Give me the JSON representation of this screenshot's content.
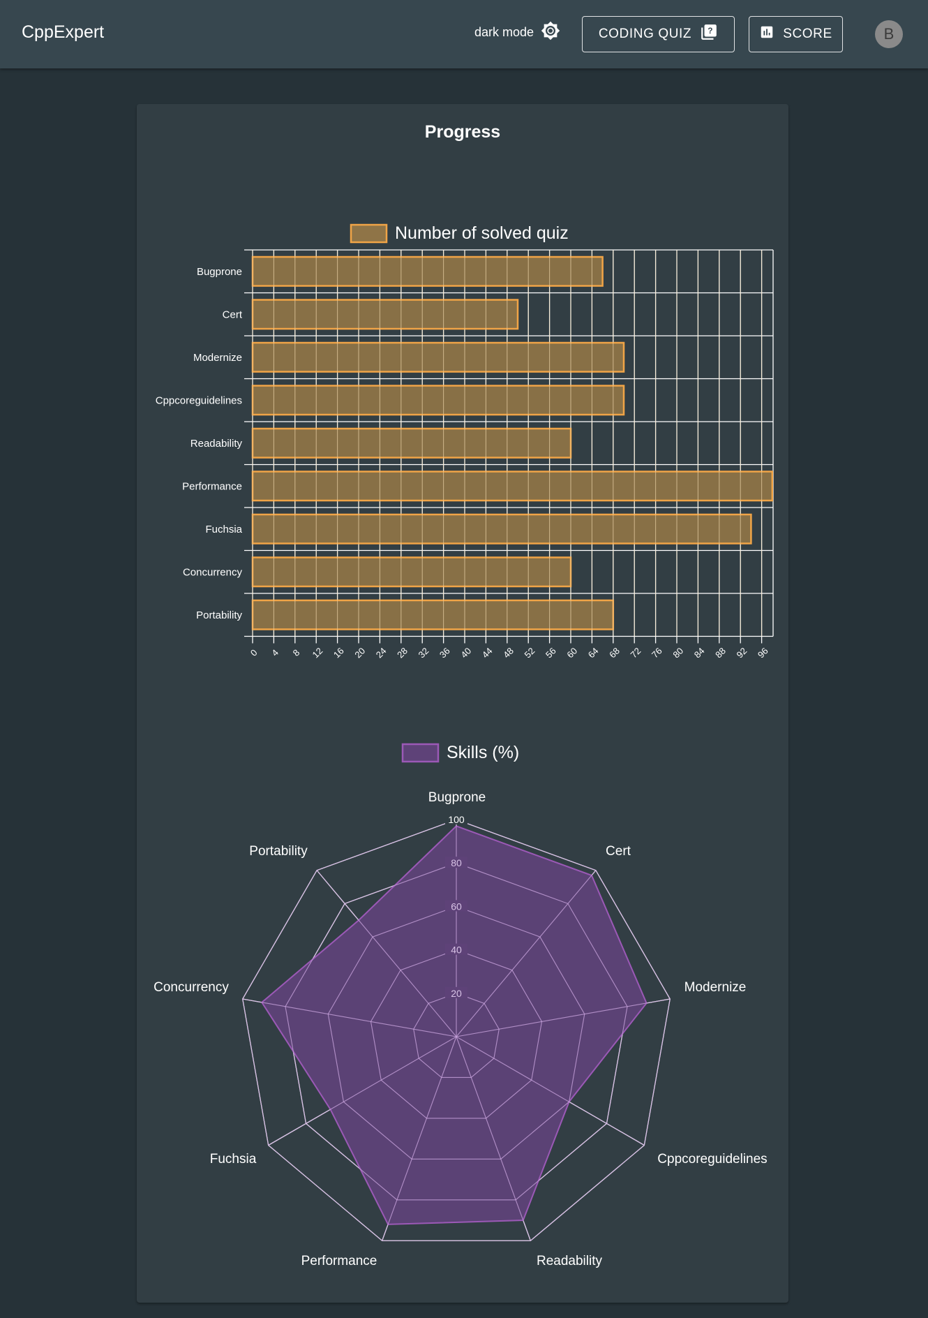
{
  "header": {
    "brand": "CppExpert",
    "dark_mode_label": "dark mode",
    "dark_mode_icon": "brightness-icon",
    "coding_quiz_label": "CODING QUIZ",
    "coding_quiz_icon": "quiz-icon",
    "score_label": "SCORE",
    "score_icon": "bar-chart-icon",
    "avatar_letter": "B"
  },
  "card": {
    "title": "Progress"
  },
  "colors": {
    "bar_fill": "#8f7447",
    "bar_border": "#f0a447",
    "radar_fill": "#5e4278",
    "radar_border": "#9b59b6",
    "grid": "#ffffff",
    "radar_inner_grid": "#c9a4dd"
  },
  "chart_data": [
    {
      "type": "bar",
      "orientation": "horizontal",
      "title": "",
      "legend": [
        "Number of solved quiz"
      ],
      "legend_position": "top",
      "categories": [
        "Bugprone",
        "Cert",
        "Modernize",
        "Cppcoreguidelines",
        "Readability",
        "Performance",
        "Fuchsia",
        "Concurrency",
        "Portability"
      ],
      "series": [
        {
          "name": "Number of solved quiz",
          "values": [
            66,
            50,
            70,
            70,
            60,
            98,
            94,
            60,
            68
          ]
        }
      ],
      "x_ticks": [
        0,
        4,
        8,
        12,
        16,
        20,
        24,
        28,
        32,
        36,
        40,
        44,
        48,
        52,
        56,
        60,
        64,
        68,
        72,
        76,
        80,
        84,
        88,
        92,
        96
      ],
      "xlim": [
        0,
        98
      ],
      "xlabel": "",
      "ylabel": "",
      "grid": true
    },
    {
      "type": "radar",
      "title": "",
      "legend": [
        "Skills (%)"
      ],
      "legend_position": "top",
      "categories": [
        "Bugprone",
        "Cert",
        "Modernize",
        "Cppcoreguidelines",
        "Readability",
        "Performance",
        "Fuchsia",
        "Concurrency",
        "Portability"
      ],
      "series": [
        {
          "name": "Skills (%)",
          "values": [
            97,
            97,
            89,
            60,
            90,
            92,
            67,
            91,
            70
          ]
        }
      ],
      "r_ticks": [
        20,
        40,
        60,
        80,
        100
      ],
      "rlim": [
        0,
        100
      ],
      "grid": true
    }
  ]
}
